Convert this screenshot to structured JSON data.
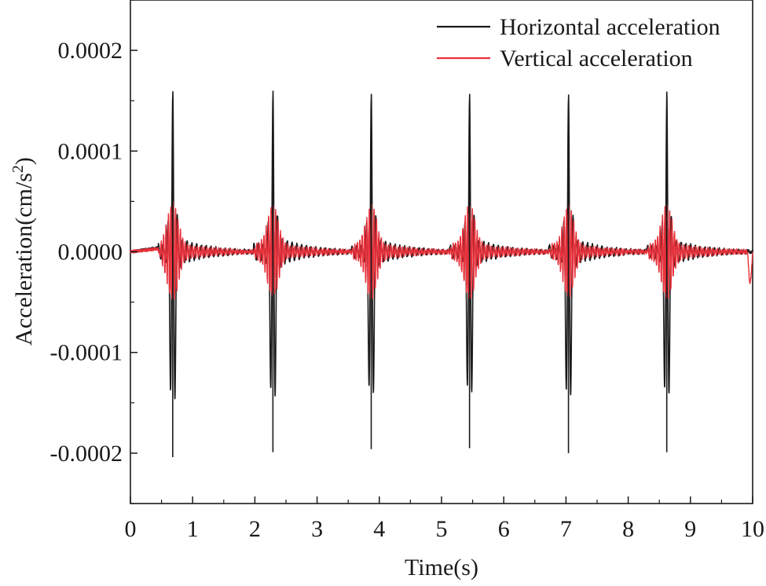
{
  "chart_data": {
    "type": "line",
    "title": "",
    "xlabel": "Time(s)",
    "ylabel_main": "Acceleration(cm/s",
    "ylabel_sup": "2",
    "ylabel_close": ")",
    "xlim": [
      0,
      10
    ],
    "ylim": [
      -0.00025,
      0.00025
    ],
    "xticks": [
      0,
      1,
      2,
      3,
      4,
      5,
      6,
      7,
      8,
      9,
      10
    ],
    "xtick_labels": [
      "0",
      "1",
      "2",
      "3",
      "4",
      "5",
      "6",
      "7",
      "8",
      "9",
      "10"
    ],
    "yticks": [
      0.0002,
      0.0001,
      0.0,
      -0.0001,
      -0.0002
    ],
    "ytick_labels": [
      "0.0002",
      "0.0001",
      "0.0000",
      "-0.0001",
      "-0.0002"
    ],
    "legend_position": "top-right",
    "grid": false,
    "bursts": [
      {
        "onset": 0.45,
        "peak_time": 0.68,
        "h_max": 0.000147,
        "h_min": -0.000204,
        "v_max": 4e-05,
        "v_min": -4.2e-05
      },
      {
        "onset": 1.98,
        "peak_time": 2.29,
        "h_max": 0.000145,
        "h_min": -0.000199,
        "v_max": 3.7e-05,
        "v_min": -4e-05
      },
      {
        "onset": 3.55,
        "peak_time": 3.87,
        "h_max": 0.000145,
        "h_min": -0.000196,
        "v_max": 3.8e-05,
        "v_min": -4e-05
      },
      {
        "onset": 5.13,
        "peak_time": 5.45,
        "h_max": 0.000144,
        "h_min": -0.000195,
        "v_max": 3.7e-05,
        "v_min": -4e-05
      },
      {
        "onset": 6.72,
        "peak_time": 7.04,
        "h_max": 0.000144,
        "h_min": -0.0002,
        "v_max": 3.7e-05,
        "v_min": -4e-05
      },
      {
        "onset": 8.3,
        "peak_time": 8.62,
        "h_max": 0.000143,
        "h_min": -0.000199,
        "v_max": 3.8e-05,
        "v_min": -4e-05
      }
    ],
    "series": [
      {
        "name": "Horizontal acceleration",
        "color": "#1a1a1a"
      },
      {
        "name": "Vertical acceleration",
        "color": "#e8303a"
      }
    ]
  }
}
